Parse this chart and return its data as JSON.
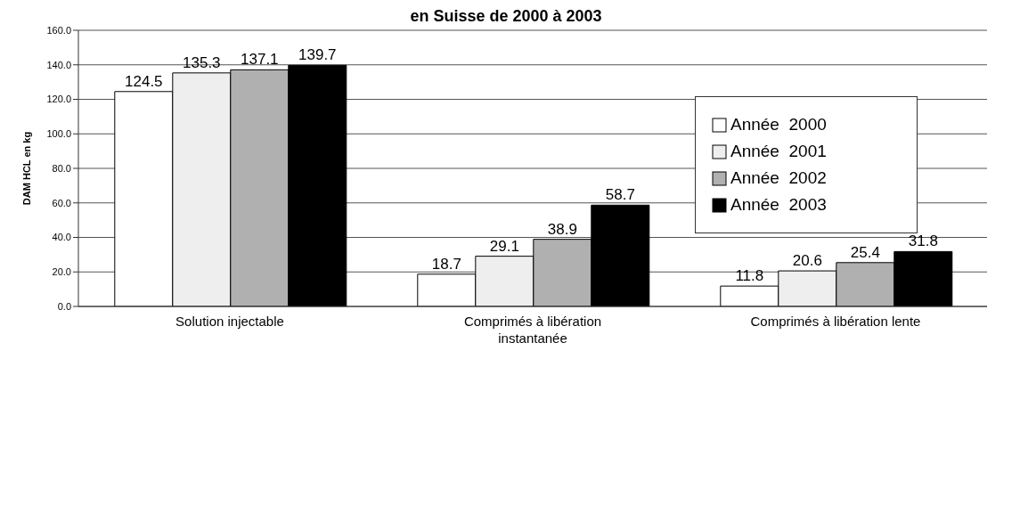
{
  "chart_data": {
    "type": "bar",
    "title": "en Suisse de 2000 à 2003",
    "ylabel": "DAM HCL en kg",
    "categories": [
      "Solution injectable",
      "Comprimés à libération instantanée",
      "Comprimés à libération lente"
    ],
    "series": [
      {
        "name": "Année  2000",
        "color": "#ffffff",
        "values": [
          124.5,
          18.7,
          11.8
        ]
      },
      {
        "name": "Année  2001",
        "color": "#eeeeee",
        "values": [
          135.3,
          29.1,
          20.6
        ]
      },
      {
        "name": "Année  2002",
        "color": "#b0b0b0",
        "values": [
          137.1,
          38.9,
          25.4
        ]
      },
      {
        "name": "Année  2003",
        "color": "#000000",
        "values": [
          139.7,
          58.7,
          31.8
        ]
      }
    ],
    "ylim": [
      0,
      160
    ],
    "yticks": [
      {
        "value": 0,
        "label": "0.0"
      },
      {
        "value": 20,
        "label": "20.0"
      },
      {
        "value": 40,
        "label": "40.0"
      },
      {
        "value": 60,
        "label": "60.0"
      },
      {
        "value": 80,
        "label": "80.0"
      },
      {
        "value": 100,
        "label": "100.0"
      },
      {
        "value": 120,
        "label": "120.0"
      },
      {
        "value": 140,
        "label": "140.0"
      },
      {
        "value": 160,
        "label": "160.0"
      }
    ],
    "grid": "y",
    "legend": "right",
    "data_labels": true
  }
}
